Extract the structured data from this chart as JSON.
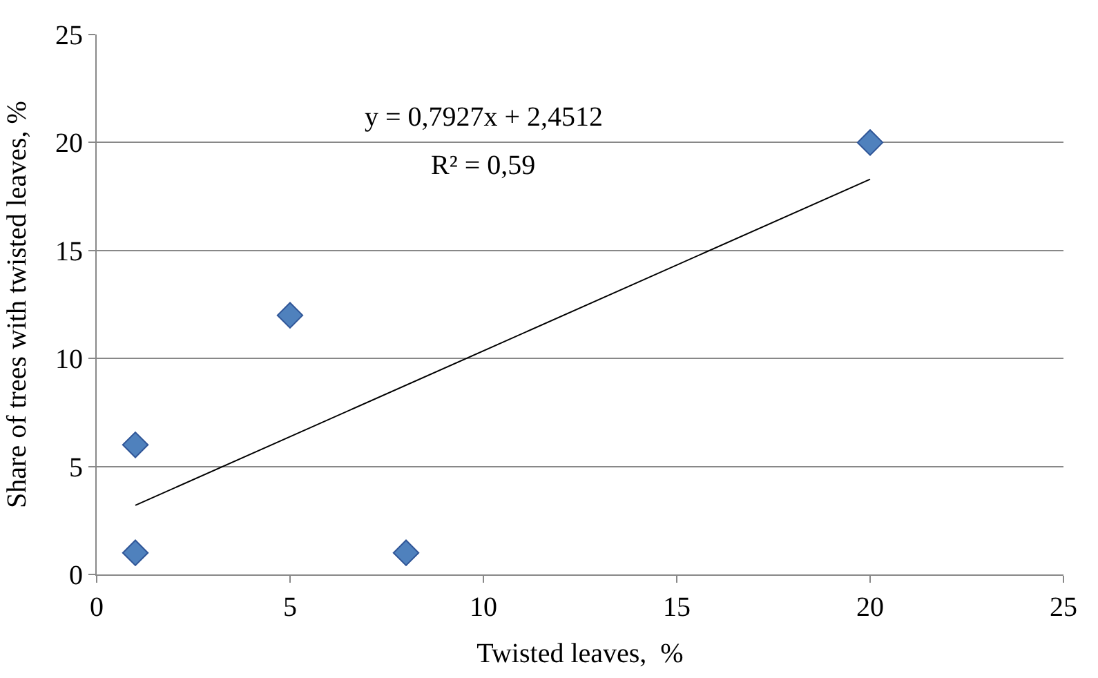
{
  "chart_data": {
    "type": "scatter",
    "xlabel": "Twisted leaves,  %",
    "ylabel": "Share of trees with twisted leaves, %",
    "annotations": [
      "y = 0,7927x + 2,4512",
      "R² = 0,59"
    ],
    "series": [
      {
        "color": "#4f81bd",
        "marker": "diamond",
        "x": [
          1,
          1,
          5,
          8,
          20
        ],
        "values": [
          6,
          1,
          12,
          1,
          20
        ]
      },
      {
        "type": "line",
        "color": "#000000",
        "marker": "none",
        "line_style": "solid",
        "x": [
          1,
          20
        ],
        "values": [
          3.2,
          18.3
        ]
      }
    ],
    "xlim": [
      0,
      25
    ],
    "xticks": [
      0,
      5,
      10,
      15,
      20,
      25
    ],
    "ylim": [
      0,
      25
    ],
    "yticks": [
      0,
      5,
      10,
      15,
      20,
      25
    ],
    "grid": "y"
  }
}
